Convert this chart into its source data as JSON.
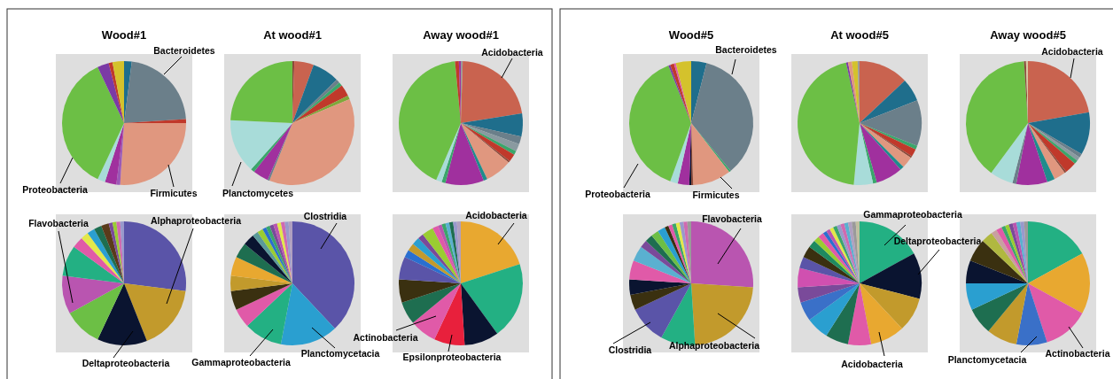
{
  "chart_data": [
    {
      "type": "pie",
      "title": "Wood#1",
      "categories": [
        null,
        "Bacteroidetes",
        null,
        "Firmicutes",
        null,
        null,
        null,
        "Proteobacteria",
        null,
        null,
        null
      ],
      "values": [
        2,
        22,
        1,
        26,
        1,
        3,
        2,
        36,
        3,
        1,
        3
      ],
      "colors": [
        "#1f6e8c",
        "#6b7f8a",
        "#c0392b",
        "#e0977f",
        "#9b59b6",
        "#a0309e",
        "#a8dcd9",
        "#6cbf45",
        "#7b3aa5",
        "#c0392b",
        "#d4c22c"
      ]
    },
    {
      "type": "pie",
      "title": "At wood#1",
      "categories": [
        null,
        null,
        null,
        null,
        null,
        null,
        null,
        null,
        null,
        null,
        null,
        "Planctomycetes",
        null
      ],
      "values": [
        0.5,
        5,
        7,
        1,
        1,
        3,
        1,
        37,
        0.5,
        4,
        1,
        14,
        24
      ],
      "colors": [
        "#8b4a3a",
        "#c9634f",
        "#1f6e8c",
        "#6b7f8a",
        "#3aa66b",
        "#c0392b",
        "#7fa83a",
        "#e0977f",
        "#6b7f8a",
        "#a0309e",
        "#3aa66b",
        "#a8dcd9",
        "#6cbf45"
      ]
    },
    {
      "type": "pie",
      "title": "Away wood#1",
      "categories": [
        null,
        "Acidobacteria",
        null,
        null,
        null,
        null,
        null,
        null,
        null,
        null,
        null,
        null,
        null,
        null,
        null,
        null
      ],
      "values": [
        0.5,
        22,
        6,
        2,
        2,
        1,
        2,
        0.5,
        7,
        1,
        10,
        1,
        1.5,
        42,
        1,
        0.5
      ],
      "colors": [
        "#9a9a9a",
        "#c9634f",
        "#1f6e8c",
        "#6b7f8a",
        "#8a9aa0",
        "#3aa66b",
        "#c0392b",
        "#8b4a3a",
        "#e0977f",
        "#1f8c8c",
        "#a0309e",
        "#3aa66b",
        "#a8dcd9",
        "#6cbf45",
        "#c0392b",
        "#a0309e"
      ]
    },
    {
      "type": "pie",
      "categories": [
        null,
        "Alphaproteobacteria",
        "Deltaproteobacteria",
        null,
        "Flavobacteria",
        null,
        null,
        null,
        null,
        null,
        null,
        null,
        null,
        null,
        null
      ],
      "values": [
        27,
        17,
        13,
        10,
        10,
        8,
        3,
        2,
        2,
        2,
        2,
        1,
        1,
        1,
        1
      ],
      "colors": [
        "#5a54a8",
        "#c29a2c",
        "#0a1430",
        "#6cbf45",
        "#b955b0",
        "#23b083",
        "#e05aa8",
        "#e3e84a",
        "#2a9fd0",
        "#1e6e50",
        "#5a3a1a",
        "#7a4a9a",
        "#9acd32",
        "#d06ab0",
        "#9999cc"
      ]
    },
    {
      "type": "pie",
      "categories": [
        "Clostridia",
        "Planctomycetacia",
        "Gammaproteobacteria",
        null,
        null,
        null,
        null,
        null,
        null,
        null,
        null,
        null,
        null,
        null,
        null,
        null,
        null,
        null,
        null
      ],
      "values": [
        38,
        15,
        10,
        5,
        5,
        4,
        5,
        4,
        3,
        1.5,
        1.5,
        1,
        1,
        1,
        1,
        1,
        1,
        1,
        1
      ],
      "colors": [
        "#5a54a8",
        "#2a9fd0",
        "#23b083",
        "#e05aa8",
        "#3a3010",
        "#c29a2c",
        "#e8a830",
        "#1e6e50",
        "#0a1430",
        "#5a9a9a",
        "#9acd32",
        "#2a6fd0",
        "#3aa66b",
        "#7a4a9a",
        "#b955b0",
        "#e3e84a",
        "#d06ab0",
        "#9999cc",
        "#b0a0c0"
      ]
    },
    {
      "type": "pie",
      "categories": [
        "Acidobacteria",
        null,
        null,
        "Epsilonproteobacteria",
        "Actinobacteria",
        null,
        null,
        null,
        null,
        null,
        null,
        null,
        null,
        null,
        null,
        null,
        null,
        null,
        null,
        null
      ],
      "values": [
        20,
        20,
        9,
        8,
        7,
        6,
        6,
        6,
        2,
        2,
        2,
        1.5,
        3,
        1.5,
        1,
        1,
        1,
        1,
        1,
        1
      ],
      "colors": [
        "#e8a830",
        "#23b083",
        "#0a1430",
        "#e8203c",
        "#e05aa8",
        "#1e6e50",
        "#3a3010",
        "#5a54a8",
        "#2a6fd0",
        "#c29a2c",
        "#2a9fd0",
        "#7a4a9a",
        "#9acd32",
        "#e05aa8",
        "#b955b0",
        "#3aa66b",
        "#5ab0d0",
        "#1e6e50",
        "#9999cc",
        "#b0a0c0"
      ]
    },
    {
      "type": "pie",
      "title": "Wood#5",
      "categories": [
        null,
        "Bacteroidetes",
        null,
        "Firmicutes",
        null,
        null,
        null,
        null,
        "Proteobacteria",
        null,
        null,
        null,
        null
      ],
      "values": [
        4,
        35,
        0.5,
        10,
        0.5,
        0.5,
        3,
        2,
        38.5,
        0.5,
        1,
        0.5,
        4
      ],
      "colors": [
        "#1f6e8c",
        "#6b7f8a",
        "#3aa66b",
        "#e0977f",
        "#8b4a3a",
        "#0a1430",
        "#a0309e",
        "#a8dcd9",
        "#6cbf45",
        "#7b3aa5",
        "#c0392b",
        "#e05aa8",
        "#d4c22c"
      ]
    },
    {
      "type": "pie",
      "title": "At wood#5",
      "categories": [
        null,
        null,
        null,
        null,
        null,
        null,
        null,
        null,
        null,
        null,
        null,
        null,
        null,
        null,
        null,
        null
      ],
      "values": [
        13,
        6,
        12,
        1,
        2,
        0.5,
        3,
        1,
        7,
        1,
        5,
        45,
        0.5,
        1,
        1.5,
        0.5
      ],
      "colors": [
        "#c9634f",
        "#1f6e8c",
        "#6b7f8a",
        "#3aa66b",
        "#c0392b",
        "#8b4a3a",
        "#e0977f",
        "#1f8c8c",
        "#a0309e",
        "#3aa66b",
        "#a8dcd9",
        "#6cbf45",
        "#7b3aa5",
        "#e0977f",
        "#d4c22c",
        "#9a9a9a"
      ]
    },
    {
      "type": "pie",
      "title": "Away wood#5",
      "categories": [
        "Acidobacteria",
        null,
        null,
        null,
        null,
        null,
        null,
        null,
        null,
        null,
        null,
        null,
        null,
        null,
        null
      ],
      "values": [
        22,
        11,
        1,
        1,
        1,
        3,
        0.5,
        3,
        2,
        8,
        1,
        6,
        38.5,
        0.5,
        0.5
      ],
      "colors": [
        "#c9634f",
        "#1f6e8c",
        "#6b7f8a",
        "#8a9aa0",
        "#3aa66b",
        "#c0392b",
        "#8b4a3a",
        "#e0977f",
        "#1f8c8c",
        "#a0309e",
        "#6b7f8a",
        "#a8dcd9",
        "#6cbf45",
        "#8b4a3a",
        "#d8c8a0"
      ]
    },
    {
      "type": "pie",
      "categories": [
        "Flavobacteria",
        "Alphaproteobacteria",
        null,
        "Clostridia",
        null,
        null,
        null,
        null,
        null,
        null,
        null,
        null,
        null,
        null,
        null,
        null,
        null,
        null,
        null
      ],
      "values": [
        26,
        23,
        9,
        10,
        4,
        4,
        5,
        4,
        2,
        2,
        2,
        2,
        1,
        1,
        1,
        1,
        1,
        1,
        1
      ],
      "colors": [
        "#b955b0",
        "#c29a2c",
        "#23b083",
        "#5a54a8",
        "#3a3010",
        "#0a1430",
        "#e05aa8",
        "#5ab0d0",
        "#7a4a9a",
        "#1e6e50",
        "#6cbf45",
        "#2a9fd0",
        "#3a3010",
        "#e05aa8",
        "#3aa66b",
        "#e3e84a",
        "#9999cc",
        "#d06ab0",
        "#9a9a9a"
      ]
    },
    {
      "type": "pie",
      "categories": [
        "Gammaproteobacteria",
        "Deltaproteobacteria",
        null,
        "Acidobacteria",
        null,
        null,
        null,
        null,
        null,
        null,
        null,
        null,
        null,
        null,
        null,
        null,
        null,
        null,
        null,
        null,
        null,
        null,
        null,
        null,
        null
      ],
      "values": [
        17,
        12,
        9,
        9,
        6,
        6,
        6,
        5,
        4,
        5,
        3,
        3,
        2,
        1.5,
        1.5,
        1,
        1,
        1,
        1,
        1,
        1,
        1,
        1,
        1,
        1
      ],
      "colors": [
        "#23b083",
        "#0a1430",
        "#c29a2c",
        "#e8a830",
        "#e05aa8",
        "#1e6e50",
        "#2a9fd0",
        "#3a70c8",
        "#7a4a9a",
        "#d050b0",
        "#5a54a8",
        "#3a3010",
        "#1e8a60",
        "#9acd32",
        "#e05aa8",
        "#2a6fd0",
        "#b955b0",
        "#e3e84a",
        "#3aa66b",
        "#9999cc",
        "#d06ab0",
        "#5ab0d0",
        "#b0a0c0",
        "#9a9a9a",
        "#c0c0a0"
      ]
    },
    {
      "type": "pie",
      "categories": [
        null,
        null,
        "Actinobacteria",
        "Planctomycetacia",
        null,
        null,
        null,
        null,
        null,
        null,
        null,
        null,
        null,
        null,
        null,
        null,
        null,
        null,
        null
      ],
      "values": [
        17,
        16,
        12,
        8,
        8,
        7,
        7,
        6,
        6,
        3,
        1.5,
        1.5,
        1,
        1,
        1,
        1,
        1,
        1,
        1
      ],
      "colors": [
        "#23b083",
        "#e8a830",
        "#e05aa8",
        "#3a70c8",
        "#c29a2c",
        "#1e6e50",
        "#2a9fd0",
        "#0a1430",
        "#3a3010",
        "#b0b840",
        "#c8a0a0",
        "#e05aa8",
        "#3aa66b",
        "#9acd32",
        "#7a4a9a",
        "#b955b0",
        "#5ab0d0",
        "#9999cc",
        "#9a9a9a"
      ]
    }
  ]
}
